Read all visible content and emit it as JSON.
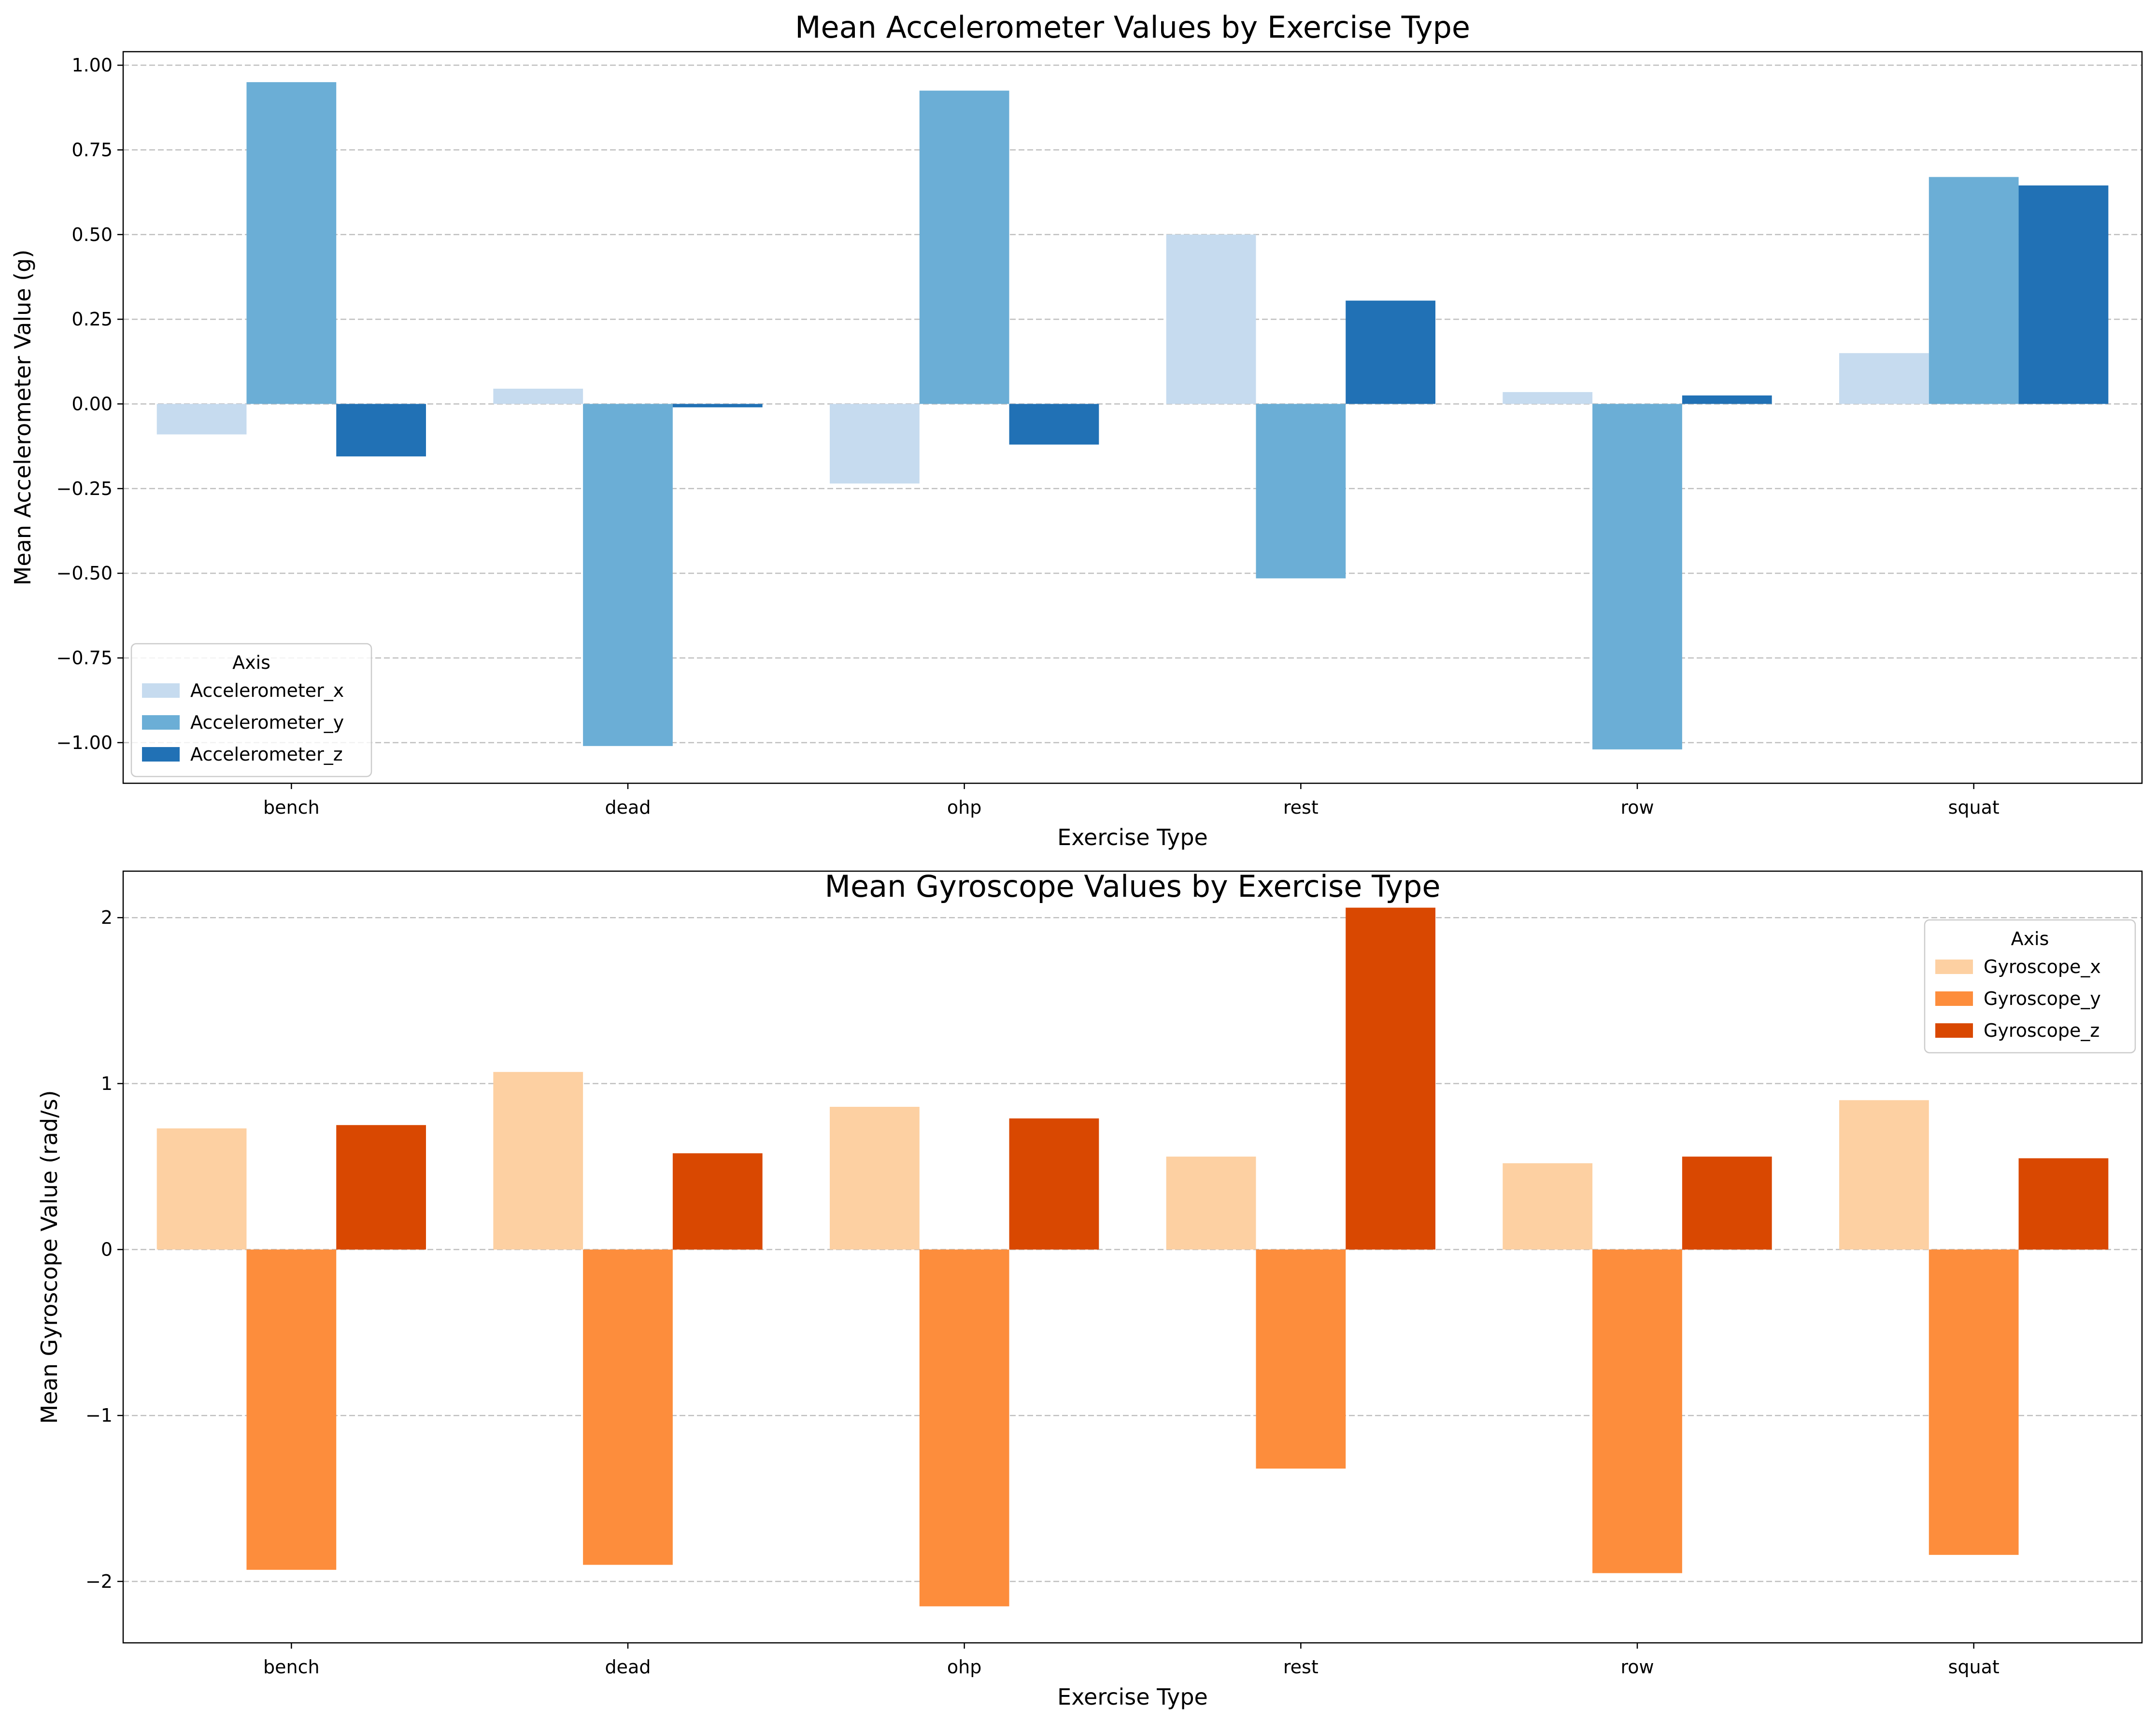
{
  "chart_data": [
    {
      "type": "bar",
      "title": "Mean Accelerometer Values by Exercise Type",
      "xlabel": "Exercise Type",
      "ylabel": "Mean Accelerometer Value (g)",
      "categories": [
        "bench",
        "dead",
        "ohp",
        "rest",
        "row",
        "squat"
      ],
      "ylim": [
        -1.12,
        1.04
      ],
      "yticks": [
        -1.0,
        -0.75,
        -0.5,
        -0.25,
        0.0,
        0.25,
        0.5,
        0.75,
        1.0
      ],
      "ytick_labels": [
        "−1.00",
        "−0.75",
        "−0.50",
        "−0.25",
        "0.00",
        "0.25",
        "0.50",
        "0.75",
        "1.00"
      ],
      "grid": "y, dashed",
      "legend": {
        "title": "Axis",
        "placement": "lower-left"
      },
      "series": [
        {
          "name": "Accelerometer_x",
          "color": "#c6dbef",
          "values": [
            -0.09,
            0.045,
            -0.235,
            0.5,
            0.035,
            0.15
          ]
        },
        {
          "name": "Accelerometer_y",
          "color": "#6baed6",
          "values": [
            0.95,
            -1.01,
            0.925,
            -0.515,
            -1.02,
            0.67
          ]
        },
        {
          "name": "Accelerometer_z",
          "color": "#2171b5",
          "values": [
            -0.155,
            -0.01,
            -0.12,
            0.305,
            0.025,
            0.645
          ]
        }
      ]
    },
    {
      "type": "bar",
      "title": "Mean Gyroscope Values by Exercise Type",
      "xlabel": "Exercise Type",
      "ylabel": "Mean Gyroscope Value (rad/s)",
      "categories": [
        "bench",
        "dead",
        "ohp",
        "rest",
        "row",
        "squat"
      ],
      "ylim": [
        -2.37,
        2.28
      ],
      "yticks": [
        -2,
        -1,
        0,
        1,
        2
      ],
      "ytick_labels": [
        "−2",
        "−1",
        "0",
        "1",
        "2"
      ],
      "grid": "y, dashed",
      "legend": {
        "title": "Axis",
        "placement": "upper-right"
      },
      "series": [
        {
          "name": "Gyroscope_x",
          "color": "#fdd0a2",
          "values": [
            0.73,
            1.07,
            0.86,
            0.56,
            0.52,
            0.9
          ]
        },
        {
          "name": "Gyroscope_y",
          "color": "#fd8d3c",
          "values": [
            -1.93,
            -1.9,
            -2.15,
            -1.32,
            -1.95,
            -1.84
          ]
        },
        {
          "name": "Gyroscope_z",
          "color": "#d94801",
          "values": [
            0.75,
            0.58,
            0.79,
            2.06,
            0.56,
            0.55
          ]
        }
      ]
    }
  ]
}
